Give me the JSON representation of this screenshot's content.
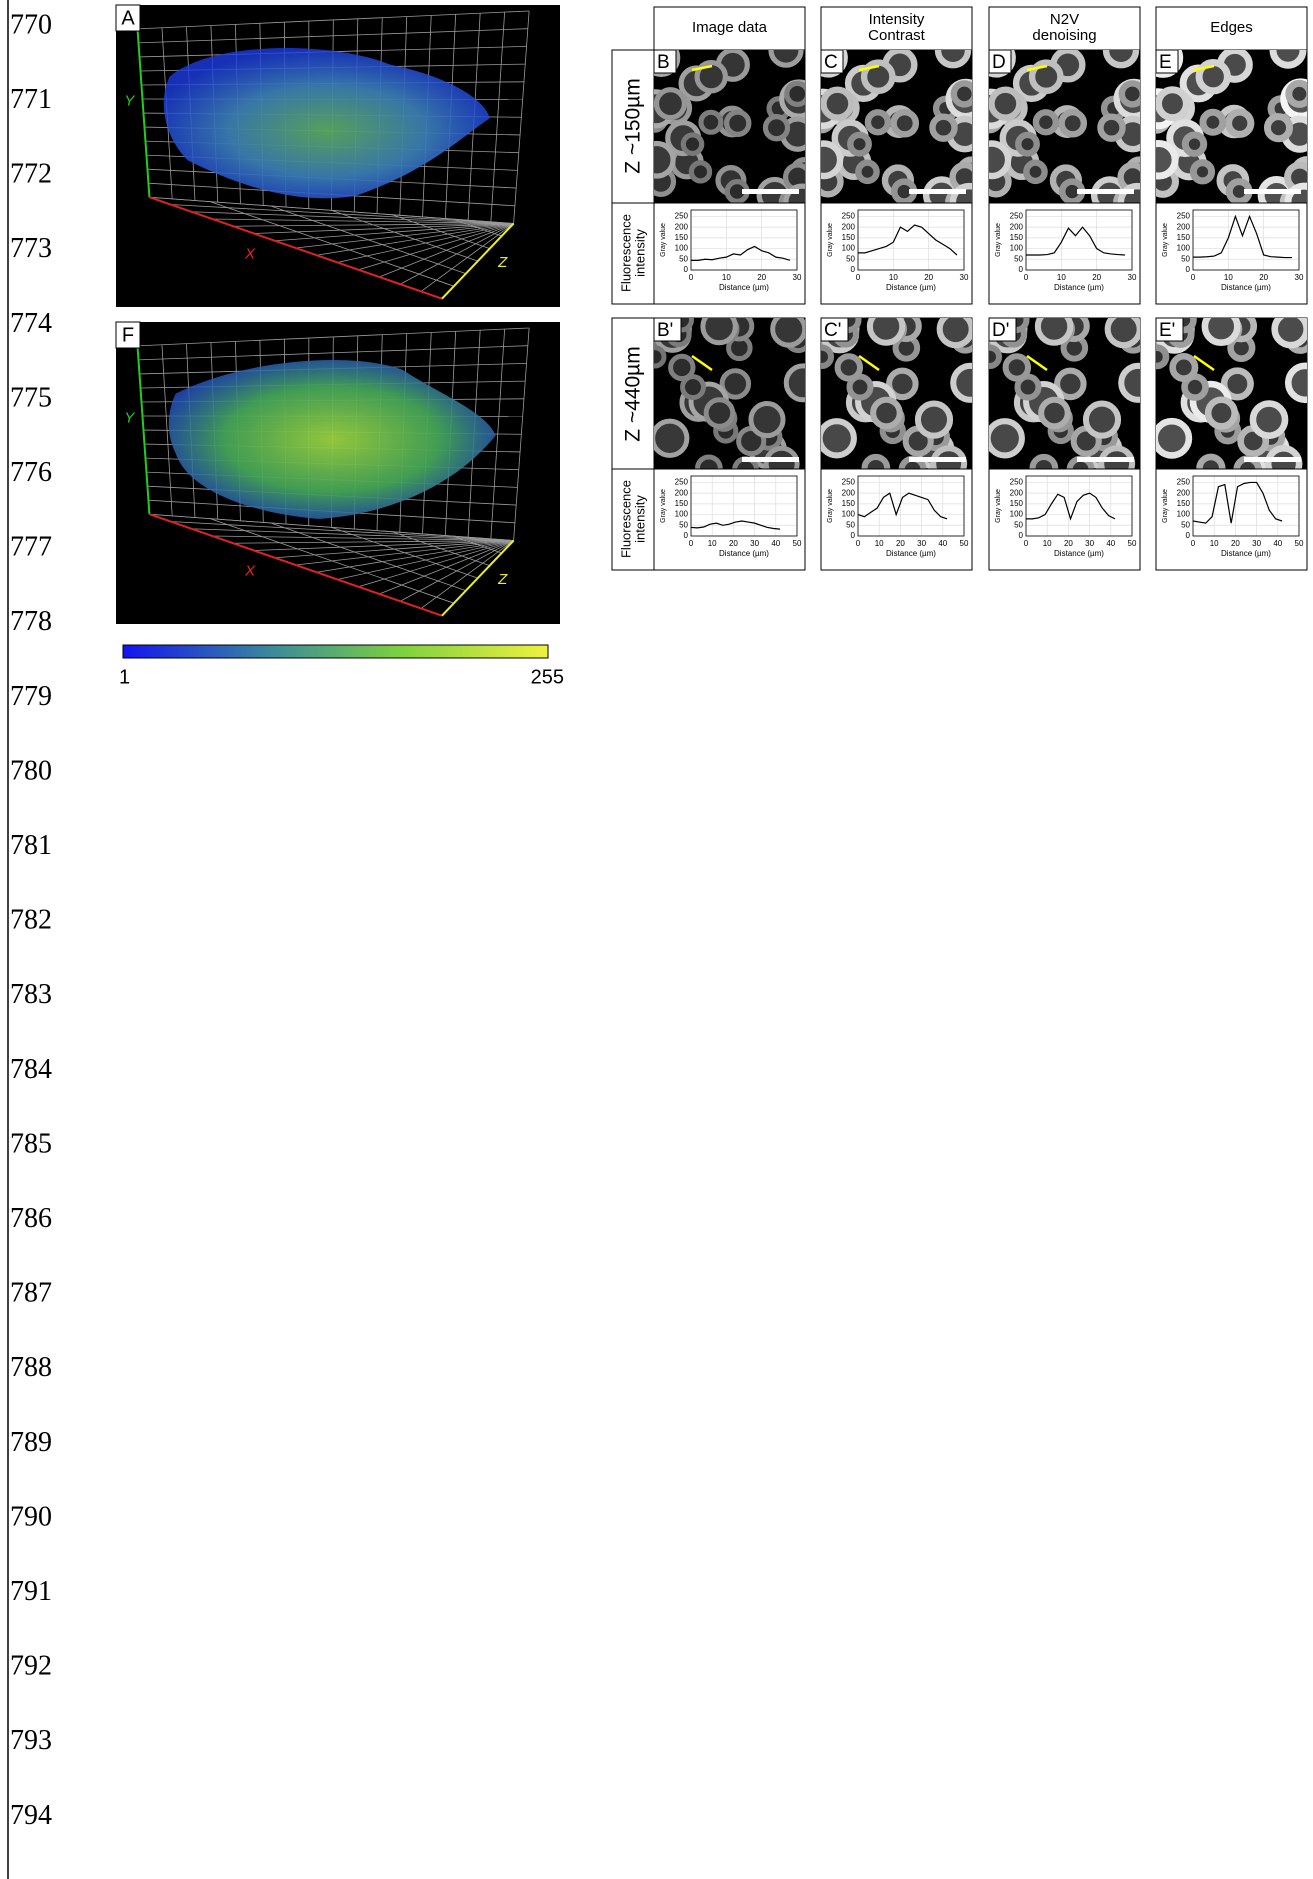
{
  "line_numbers": [
    "770",
    "771",
    "772",
    "773",
    "774",
    "775",
    "776",
    "777",
    "778",
    "779",
    "780",
    "781",
    "782",
    "783",
    "784",
    "785",
    "786",
    "787",
    "788",
    "789",
    "790",
    "791",
    "792",
    "793",
    "794"
  ],
  "overview_panels": [
    {
      "label": "A",
      "axis_labels": {
        "x": "X",
        "y": "Y",
        "z": "Z"
      }
    },
    {
      "label": "F",
      "axis_labels": {
        "x": "X",
        "y": "Y",
        "z": "Z"
      }
    }
  ],
  "colorbar": {
    "ticks": [
      1,
      255
    ]
  },
  "column_headers": [
    [
      "Image data"
    ],
    [
      "Intensity",
      "Contrast"
    ],
    [
      "N2V",
      "denoising"
    ],
    [
      "Edges"
    ]
  ],
  "profile_axis_title": [
    "Fluorescence",
    "intensity"
  ],
  "profile_xlabel": "Distance (µm)",
  "profile_ylabel": "Gray value",
  "ylim": [
    0,
    280
  ],
  "yticks": [
    0,
    50,
    100,
    150,
    200,
    250
  ],
  "rows": [
    {
      "label": "Z ~150µm",
      "xlim": [
        0,
        30
      ],
      "xticks": [
        0,
        10,
        20,
        30
      ],
      "panels": [
        {
          "label": "B",
          "profile": {
            "type": "line",
            "x": [
              0,
              2,
              4,
              6,
              8,
              10,
              12,
              14,
              16,
              18,
              20,
              22,
              24,
              26,
              28
            ],
            "values": [
              45,
              45,
              50,
              48,
              55,
              60,
              75,
              70,
              95,
              110,
              90,
              80,
              60,
              55,
              45
            ]
          }
        },
        {
          "label": "C",
          "profile": {
            "type": "line",
            "x": [
              0,
              2,
              4,
              6,
              8,
              10,
              12,
              14,
              16,
              18,
              20,
              22,
              24,
              26,
              28
            ],
            "values": [
              80,
              80,
              90,
              100,
              110,
              130,
              200,
              180,
              210,
              200,
              170,
              140,
              120,
              100,
              70
            ]
          }
        },
        {
          "label": "D",
          "profile": {
            "type": "line",
            "x": [
              0,
              2,
              4,
              6,
              8,
              10,
              12,
              14,
              16,
              18,
              20,
              22,
              24,
              26,
              28
            ],
            "values": [
              70,
              70,
              70,
              72,
              80,
              130,
              195,
              160,
              200,
              160,
              100,
              80,
              75,
              72,
              70
            ]
          }
        },
        {
          "label": "E",
          "profile": {
            "type": "line",
            "x": [
              0,
              2,
              4,
              6,
              8,
              10,
              12,
              14,
              16,
              18,
              20,
              22,
              24,
              26,
              28
            ],
            "values": [
              60,
              60,
              62,
              65,
              80,
              150,
              250,
              160,
              250,
              170,
              70,
              62,
              60,
              58,
              58
            ]
          }
        }
      ]
    },
    {
      "label": "Z ~440µm",
      "xlim": [
        0,
        50
      ],
      "xticks": [
        0,
        10,
        20,
        30,
        40,
        50
      ],
      "panels": [
        {
          "label": "B'",
          "profile": {
            "type": "line",
            "x": [
              0,
              3,
              6,
              9,
              12,
              15,
              18,
              21,
              24,
              27,
              30,
              33,
              36,
              39,
              42
            ],
            "values": [
              40,
              38,
              42,
              55,
              60,
              50,
              55,
              65,
              70,
              65,
              60,
              50,
              40,
              35,
              32
            ]
          }
        },
        {
          "label": "C'",
          "profile": {
            "type": "line",
            "x": [
              0,
              3,
              6,
              9,
              12,
              15,
              18,
              21,
              24,
              27,
              30,
              33,
              36,
              39,
              42
            ],
            "values": [
              100,
              90,
              110,
              130,
              180,
              200,
              100,
              180,
              200,
              190,
              180,
              170,
              120,
              90,
              80
            ]
          }
        },
        {
          "label": "D'",
          "profile": {
            "type": "line",
            "x": [
              0,
              3,
              6,
              9,
              12,
              15,
              18,
              21,
              24,
              27,
              30,
              33,
              36,
              39,
              42
            ],
            "values": [
              80,
              80,
              85,
              100,
              150,
              195,
              180,
              80,
              160,
              190,
              200,
              180,
              130,
              95,
              80
            ]
          }
        },
        {
          "label": "E'",
          "profile": {
            "type": "line",
            "x": [
              0,
              3,
              6,
              9,
              12,
              15,
              18,
              21,
              24,
              27,
              30,
              33,
              36,
              39,
              42
            ],
            "values": [
              70,
              65,
              60,
              90,
              230,
              240,
              60,
              230,
              245,
              250,
              250,
              200,
              120,
              80,
              70
            ]
          }
        }
      ]
    }
  ]
}
